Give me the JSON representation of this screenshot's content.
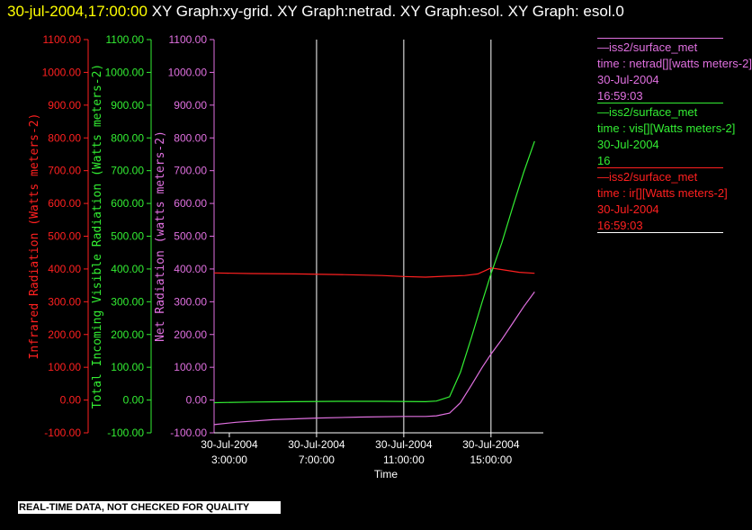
{
  "header": {
    "timestamp": "30-jul-2004,17:00:00",
    "title": "  XY Graph:xy-grid.  XY Graph:netrad.  XY Graph:esol.  XY Graph: esol.0"
  },
  "legend": [
    {
      "line1": "—iss2/surface_met",
      "line2": "time : netrad[][watts meters-2]",
      "line3": "30-Jul-2004",
      "line4": "16:59:03",
      "color": "#e070e0"
    },
    {
      "line1": "—iss2/surface_met",
      "line2": "time : vis[][Watts meters-2]",
      "line3": "30-Jul-2004",
      "line4": "16",
      "color": "#33ee33"
    },
    {
      "line1": "—iss2/surface_met",
      "line2": "time : ir[][Watts meters-2]",
      "line3": "30-Jul-2004",
      "line4": "16:59:03",
      "color": "#ff2020"
    }
  ],
  "footer": "REAL-TIME DATA, NOT CHECKED FOR QUALITY",
  "chart_data": {
    "type": "line",
    "xlabel": "Time",
    "x_ticks": [
      {
        "date": "30-Jul-2004",
        "time": "3:00:00",
        "hour": 3
      },
      {
        "date": "30-Jul-2004",
        "time": "7:00:00",
        "hour": 7
      },
      {
        "date": "30-Jul-2004",
        "time": "11:00:00",
        "hour": 11
      },
      {
        "date": "30-Jul-2004",
        "time": "15:00:00",
        "hour": 15
      }
    ],
    "xlim": [
      2.3,
      17.4
    ],
    "grid_hours": [
      7,
      11,
      15
    ],
    "y_axes": [
      {
        "label": "Infrared Radiation (Watts meters-2)",
        "color": "#ff2020",
        "ylim": [
          -100,
          1100
        ]
      },
      {
        "label": "Total Incoming Visible Radiation (Watts meters-2)",
        "color": "#33ee33",
        "ylim": [
          -100,
          1100
        ]
      },
      {
        "label": "Net Radiation (watts meters-2)",
        "color": "#e070e0",
        "ylim": [
          -100,
          1100
        ]
      }
    ],
    "y_ticks": [
      "-100.00",
      "0.00",
      "100.00",
      "200.00",
      "300.00",
      "400.00",
      "500.00",
      "600.00",
      "700.00",
      "800.00",
      "900.00",
      "1000.00",
      "1100.00"
    ],
    "series": [
      {
        "name": "ir",
        "color": "#ff2020",
        "x": [
          2.3,
          4,
          6,
          8,
          10,
          11,
          12,
          13,
          13.8,
          14.4,
          15,
          15.6,
          16.3,
          17
        ],
        "y": [
          388,
          386,
          385,
          383,
          380,
          377,
          375,
          378,
          380,
          385,
          403,
          397,
          390,
          387
        ]
      },
      {
        "name": "vis",
        "color": "#33ee33",
        "x": [
          2.3,
          4,
          6,
          8,
          10,
          12,
          12.5,
          13.1,
          13.6,
          14.1,
          14.6,
          15,
          15.5,
          16,
          16.5,
          17
        ],
        "y": [
          -8,
          -6,
          -5,
          -4,
          -4,
          -5,
          -3,
          10,
          85,
          190,
          300,
          385,
          480,
          590,
          695,
          790
        ]
      },
      {
        "name": "netrad",
        "color": "#e070e0",
        "x": [
          2.3,
          3.3,
          5,
          7,
          9,
          11,
          12,
          12.5,
          13.1,
          13.6,
          14.1,
          14.6,
          15,
          15.5,
          16,
          16.5,
          17
        ],
        "y": [
          -75,
          -68,
          -60,
          -55,
          -52,
          -50,
          -50,
          -48,
          -40,
          -8,
          45,
          100,
          140,
          185,
          235,
          285,
          330
        ]
      }
    ]
  }
}
